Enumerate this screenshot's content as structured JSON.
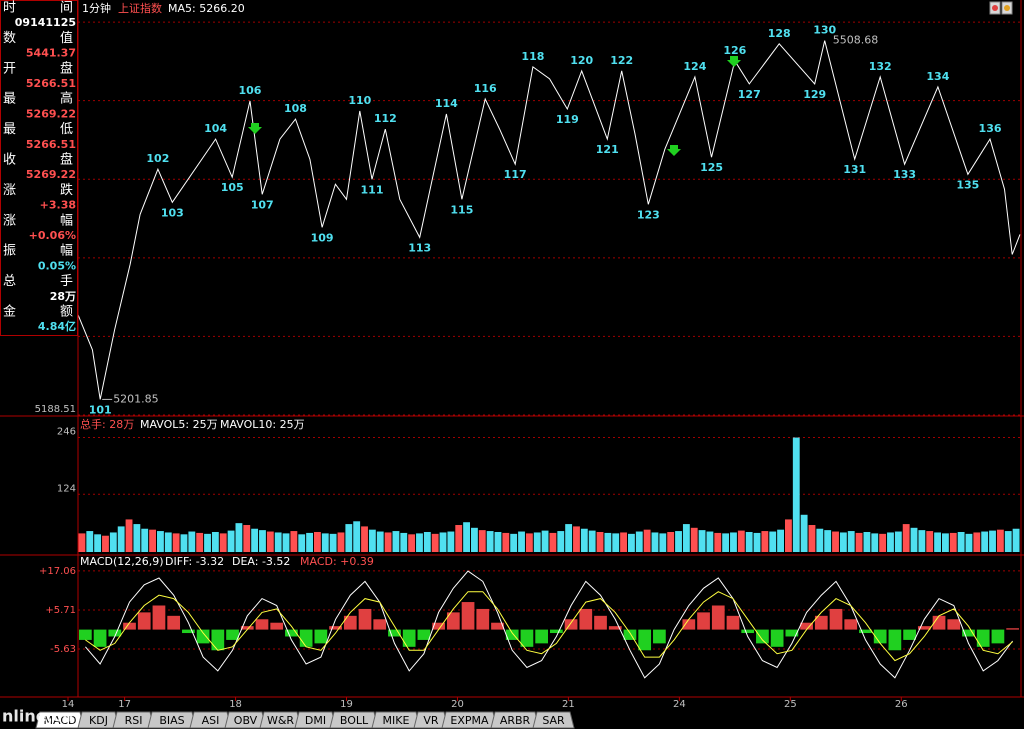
{
  "header": {
    "period": "1分钟",
    "symbol": "上证指数",
    "ma5": "MA5: 5266.20"
  },
  "info_panel": {
    "rows": [
      [
        "时间",
        "09141125"
      ],
      [
        "数值",
        "5441.37"
      ],
      [
        "开盘",
        "5266.51"
      ],
      [
        "最高",
        "5269.22"
      ],
      [
        "最低",
        "5266.51"
      ],
      [
        "收盘",
        "5269.22"
      ],
      [
        "涨跌",
        "+3.38"
      ],
      [
        "涨幅",
        "+0.06%"
      ],
      [
        "振幅",
        "0.05%"
      ],
      [
        "总手",
        "28万"
      ],
      [
        "金额",
        "4.84亿"
      ]
    ],
    "value_colors": [
      "#ffffff",
      "#ff5050",
      "#ff5050",
      "#ff5050",
      "#ff5050",
      "#ff5050",
      "#ff5050",
      "#ff5050",
      "#50e0f0",
      "#ffffff",
      "#50e0f0"
    ]
  },
  "chart_data": [
    {
      "type": "line",
      "color": "#ffffff",
      "label_color": "#50e0f0",
      "grid": true,
      "x": [
        0.58,
        0.71,
        0.78,
        0.91,
        1.05,
        1.14,
        1.3,
        1.43,
        1.82,
        1.97,
        2.13,
        2.24,
        2.4,
        2.54,
        2.67,
        2.78,
        2.9,
        3.0,
        3.12,
        3.23,
        3.35,
        3.48,
        3.66,
        3.9,
        4.04,
        4.25,
        4.38,
        4.52,
        4.68,
        4.83,
        4.99,
        5.12,
        5.35,
        5.48,
        5.6,
        5.72,
        5.87,
        6.14,
        6.29,
        6.5,
        6.63,
        6.9,
        7.22,
        7.31,
        7.58,
        7.81,
        8.03,
        8.33,
        8.6,
        8.8,
        8.93,
        9.0,
        9.07
      ],
      "values": [
        5274.3,
        5244.3,
        5201.85,
        5261.4,
        5317.2,
        5360.1,
        5398.7,
        5370.4,
        5424.5,
        5391.9,
        5457.1,
        5377.3,
        5424.5,
        5441.6,
        5407.3,
        5349.0,
        5385.9,
        5373.0,
        5448.5,
        5390.1,
        5433.0,
        5373.0,
        5340.4,
        5445.9,
        5373.0,
        5458.8,
        5433.0,
        5403.0,
        5486.2,
        5476.0,
        5450.2,
        5482.8,
        5424.5,
        5482.8,
        5428.8,
        5368.7,
        5415.9,
        5477.7,
        5409.0,
        5491.4,
        5471.7,
        5506.0,
        5471.7,
        5508.68,
        5407.3,
        5477.7,
        5403.0,
        5469.1,
        5394.4,
        5424.5,
        5381.6,
        5325.8,
        5343.0
      ],
      "wave_labels": [
        null,
        null,
        "101",
        null,
        null,
        null,
        "102",
        "103",
        "104",
        "105",
        "106",
        "107",
        null,
        "108",
        null,
        "109",
        null,
        null,
        "110",
        "111",
        "112",
        null,
        "113",
        "114",
        "115",
        "116",
        null,
        "117",
        "118",
        null,
        "119",
        "120",
        "121",
        "122",
        null,
        "123",
        null,
        "124",
        "125",
        "126",
        "127",
        "128",
        "129",
        "130",
        "131",
        "132",
        "133",
        "134",
        "135",
        "136",
        null,
        null,
        null
      ],
      "low_label": "5201.85",
      "high_label": "5508.68",
      "xlim": [
        0.58,
        9.07
      ],
      "xticks": [
        {
          "value": 0.49,
          "label": "14"
        },
        {
          "value": 1,
          "label": "17"
        },
        {
          "value": 2,
          "label": "18"
        },
        {
          "value": 3,
          "label": "19"
        },
        {
          "value": 4,
          "label": "20"
        },
        {
          "value": 5,
          "label": "21"
        },
        {
          "value": 6,
          "label": "24"
        },
        {
          "value": 7,
          "label": "25"
        },
        {
          "value": 8,
          "label": "26"
        }
      ],
      "ylim": [
        5188.51,
        5528.9
      ],
      "yticks": [
        5188.51,
        5255.72,
        5322.93,
        5390.14,
        5457.35,
        5524.56
      ]
    },
    {
      "type": "bar",
      "colors": [
        "#ff5050",
        "#50e0f0"
      ],
      "title_parts": [
        {
          "text": "总手: 28万",
          "color": "#ff5050"
        },
        {
          "text": "MAVOL5: 25万",
          "color": "#ffffff"
        },
        {
          "text": "MAVOL10: 25万",
          "color": "#ffffff"
        }
      ],
      "values": [
        40,
        45,
        38,
        35,
        42,
        55,
        70,
        60,
        50,
        48,
        45,
        42,
        40,
        38,
        44,
        41,
        39,
        43,
        40,
        46,
        62,
        58,
        50,
        47,
        44,
        42,
        40,
        45,
        38,
        41,
        43,
        40,
        39,
        42,
        60,
        66,
        55,
        48,
        44,
        42,
        45,
        41,
        38,
        40,
        43,
        39,
        42,
        44,
        58,
        64,
        52,
        47,
        45,
        43,
        41,
        39,
        44,
        40,
        42,
        46,
        41,
        45,
        60,
        55,
        50,
        46,
        43,
        41,
        40,
        42,
        39,
        44,
        48,
        42,
        40,
        43,
        45,
        60,
        52,
        47,
        44,
        41,
        40,
        42,
        46,
        43,
        41,
        45,
        44,
        48,
        70,
        246,
        80,
        58,
        50,
        47,
        44,
        42,
        45,
        41,
        43,
        40,
        39,
        42,
        44,
        60,
        52,
        47,
        45,
        42,
        40,
        41,
        43,
        39,
        42,
        44,
        46,
        48,
        45,
        50
      ],
      "ylim": [
        0,
        288
      ],
      "yticks": [
        124,
        246
      ]
    },
    {
      "type": "macd",
      "up_color": "#e04040",
      "down_color": "#20d020",
      "title_parts": [
        {
          "text": "MACD(12,26,9)",
          "color": "#ffffff"
        },
        {
          "text": "DIFF: -3.32",
          "color": "#ffffff"
        },
        {
          "text": "DEA: -3.52",
          "color": "#ffffff"
        },
        {
          "text": "MACD: +0.39",
          "color": "#ff5050"
        }
      ],
      "histogram": [
        -3,
        -5,
        -2,
        2,
        5,
        7,
        4,
        -1,
        -4,
        -6,
        -3,
        1,
        3,
        2,
        -2,
        -5,
        -4,
        1,
        4,
        6,
        3,
        -2,
        -5,
        -3,
        2,
        5,
        8,
        6,
        2,
        -3,
        -5,
        -4,
        -1,
        3,
        6,
        4,
        1,
        -3,
        -6,
        -4,
        0,
        3,
        5,
        7,
        4,
        -1,
        -4,
        -5,
        -2,
        2,
        4,
        6,
        3,
        -1,
        -4,
        -6,
        -3,
        1,
        4,
        3,
        -2,
        -5,
        -4,
        0.39
      ],
      "series": [
        {
          "color": "#ffffff",
          "values": [
            -5,
            -10,
            -2,
            8,
            13,
            15,
            10,
            2,
            -8,
            -12,
            -6,
            4,
            9,
            7,
            -3,
            -10,
            -8,
            3,
            10,
            14,
            8,
            -4,
            -12,
            -7,
            5,
            12,
            17,
            14,
            5,
            -6,
            -11,
            -9,
            -2,
            7,
            14,
            10,
            3,
            -6,
            -14,
            -10,
            0,
            7,
            12,
            15,
            9,
            -2,
            -9,
            -11,
            -4,
            5,
            10,
            14,
            7,
            -3,
            -10,
            -14,
            -6,
            3,
            9,
            7,
            -4,
            -12,
            -9,
            -3.32
          ]
        },
        {
          "color": "#ffff40",
          "values": [
            -3,
            -6,
            -4,
            2,
            7,
            10,
            9,
            5,
            -1,
            -6,
            -5,
            0,
            5,
            6,
            1,
            -5,
            -6,
            -1,
            5,
            9,
            8,
            1,
            -6,
            -6,
            0,
            6,
            11,
            11,
            6,
            -1,
            -6,
            -7,
            -4,
            2,
            8,
            9,
            5,
            -1,
            -8,
            -8,
            -3,
            3,
            8,
            11,
            9,
            3,
            -3,
            -7,
            -6,
            0,
            5,
            9,
            7,
            2,
            -4,
            -9,
            -7,
            -2,
            4,
            6,
            1,
            -6,
            -7,
            -3.52
          ]
        }
      ],
      "ylim": [
        -19,
        20.8
      ],
      "yticks": [
        {
          "value": 17.06,
          "label": "+17.06"
        },
        {
          "value": 5.71,
          "label": "+5.71"
        },
        -5.63
      ]
    }
  ],
  "tabs": [
    "MACD",
    "KDJ",
    "RSI",
    "BIAS",
    "ASI",
    "OBV",
    "W&R",
    "DMI",
    "BOLL",
    "MIKE",
    "VR",
    "EXPMA",
    "ARBR",
    "SAR"
  ],
  "watermark": "nline.cn"
}
